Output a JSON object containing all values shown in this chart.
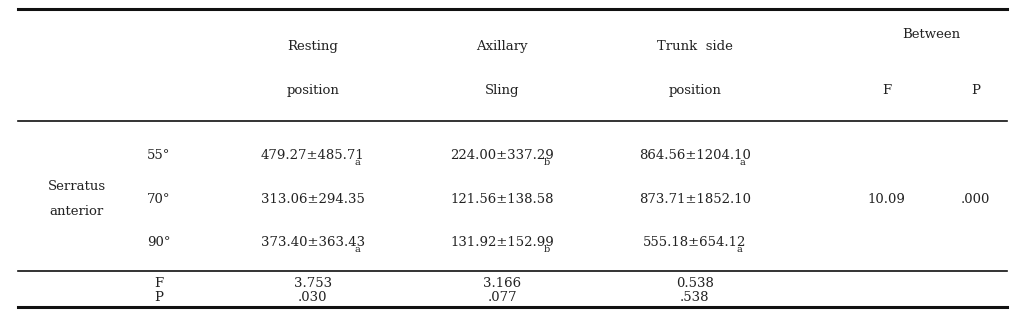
{
  "col_headers": {
    "resting": [
      "Resting",
      "position"
    ],
    "axillary": [
      "Axillary",
      "Sling"
    ],
    "trunk": [
      "Trunk  side",
      "position"
    ],
    "between_top": "Between",
    "F": "F",
    "P": "P"
  },
  "row_label": [
    "Serratus",
    "anterior"
  ],
  "angle_labels": [
    "55°",
    "70°",
    "90°"
  ],
  "data_rows": [
    {
      "resting": "479.27±485.71",
      "resting_sub": "a",
      "axillary": "224.00±337.29",
      "axillary_sub": "b",
      "trunk": "864.56±1204.10",
      "trunk_sub": "a",
      "F_val": "",
      "P_val": ""
    },
    {
      "resting": "313.06±294.35",
      "resting_sub": "",
      "axillary": "121.56±138.58",
      "axillary_sub": "",
      "trunk": "873.71±1852.10",
      "trunk_sub": "",
      "F_val": "10.09",
      "P_val": ".000"
    },
    {
      "resting": "373.40±363.43",
      "resting_sub": "a",
      "axillary": "131.92±152.99",
      "axillary_sub": "b",
      "trunk": "555.18±654.12",
      "trunk_sub": "a",
      "F_val": "",
      "P_val": ""
    }
  ],
  "footer_labels": [
    "F",
    "P"
  ],
  "footer_data": [
    [
      "3.753",
      "3.166",
      "0.538"
    ],
    [
      ".030",
      ".077",
      ".538"
    ]
  ],
  "bg_color": "#ffffff",
  "text_color": "#222222",
  "line_color": "#111111",
  "font_size": 9.5,
  "sub_font_size": 7.0
}
